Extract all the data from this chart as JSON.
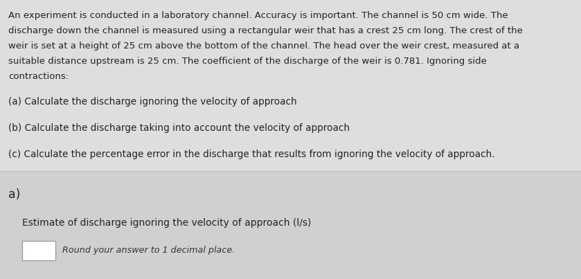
{
  "background_color": "#dedede",
  "top_bg": "#dedede",
  "bottom_bg": "#d0d0d0",
  "paragraph_lines": [
    "An experiment is conducted in a laboratory channel. Accuracy is important. The channel is 50 cm wide. The",
    "discharge down the channel is measured using a rectangular weir that has a crest 25 cm long. The crest of the",
    "weir is set at a height of 25 cm above the bottom of the channel. The head over the weir crest, measured at a",
    "suitable distance upstream is 25 cm. The coefficient of the discharge of the weir is 0.781. Ignoring side",
    "contractions:"
  ],
  "item_a": "(a) Calculate the discharge ignoring the velocity of approach",
  "item_b": "(b) Calculate the discharge taking into account the velocity of approach",
  "item_c": "(c) Calculate the percentage error in the discharge that results from ignoring the velocity of approach.",
  "section_label": "a)",
  "question_label": "Estimate of discharge ignoring the velocity of approach (l/s)",
  "answer_hint": "Round your answer to 1 decimal place.",
  "text_color": "#222222",
  "hint_color": "#333333",
  "box_color": "#ffffff",
  "box_border": "#999999",
  "divider_color": "#bbbbbb",
  "fig_width": 8.39,
  "fig_height": 4.03,
  "dpi": 100
}
